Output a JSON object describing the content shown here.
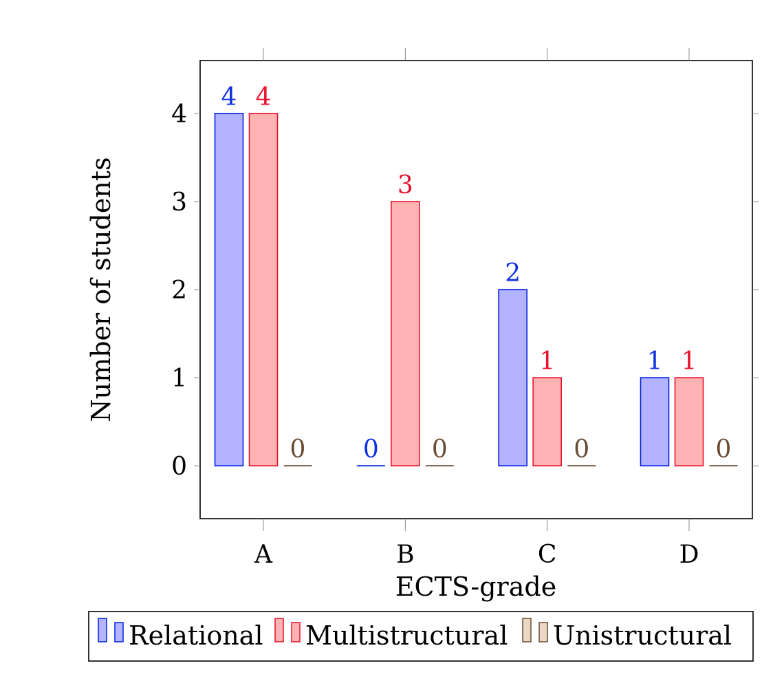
{
  "chart_data": {
    "type": "bar",
    "categories": [
      "A",
      "B",
      "C",
      "D"
    ],
    "series": [
      {
        "name": "Relational",
        "values": [
          4,
          0,
          2,
          1
        ],
        "fill": "#b3b3ff",
        "stroke": "#0020e0",
        "label_color": "#1030e0"
      },
      {
        "name": "Multistructural",
        "values": [
          4,
          3,
          1,
          1
        ],
        "fill": "#ffb3b3",
        "stroke": "#e8102a",
        "label_color": "#e8102a"
      },
      {
        "name": "Unistructural",
        "values": [
          0,
          0,
          0,
          0
        ],
        "fill": "#e8d8c4",
        "stroke": "#6b4a30",
        "label_color": "#6b4a30"
      }
    ],
    "xlabel": "ECTS-grade",
    "ylabel": "Number of students",
    "ylim": [
      -0.6,
      4.6
    ],
    "yticks": [
      0,
      1,
      2,
      3,
      4
    ],
    "grid": false,
    "legend_position": "bottom-outside"
  }
}
